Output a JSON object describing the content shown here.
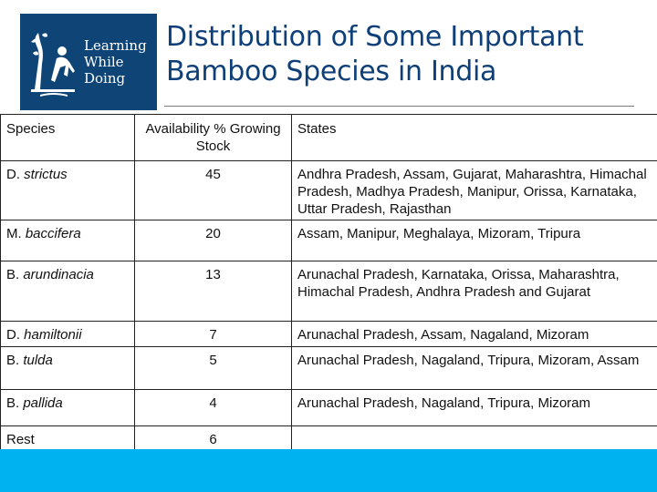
{
  "logo": {
    "line1": "Learning",
    "line2": "While",
    "line3": "Doing"
  },
  "title": {
    "line1": "Distribution of Some Important",
    "line2": "Bamboo Species in India"
  },
  "table": {
    "headers": [
      "Species",
      "Availability % Growing Stock",
      "States"
    ],
    "rows": [
      {
        "prefix": "D. ",
        "species": "strictus",
        "value": "45",
        "states": "Andhra Pradesh, Assam, Gujarat, Maharashtra, Himachal Pradesh, Madhya Pradesh, Manipur, Orissa, Karnataka, Uttar Pradesh, Rajasthan"
      },
      {
        "prefix": "M. ",
        "species": "baccifera",
        "value": "20",
        "states": "Assam, Manipur, Meghalaya, Mizoram, Tripura"
      },
      {
        "prefix": "B. ",
        "species": "arundinacia",
        "value": "13",
        "states": "Arunachal Pradesh, Karnataka, Orissa, Maharashtra, Himachal Pradesh, Andhra Pradesh and Gujarat"
      },
      {
        "prefix": "D. ",
        "species": "hamiltonii",
        "value": "7",
        "states": "Arunachal Pradesh, Assam, Nagaland, Mizoram"
      },
      {
        "prefix": "B. ",
        "species": "tulda",
        "value": "5",
        "states": "Arunachal Pradesh, Nagaland, Tripura, Mizoram, Assam"
      },
      {
        "prefix": "B. ",
        "species": "pallida",
        "value": "4",
        "states": "Arunachal Pradesh, Nagaland, Tripura, Mizoram"
      },
      {
        "prefix": "",
        "species": "Rest",
        "value": "6",
        "states": ""
      }
    ]
  },
  "colors": {
    "accent": "#00b2f0",
    "title": "#0e3f78",
    "logo_bg": "#0e4576"
  }
}
